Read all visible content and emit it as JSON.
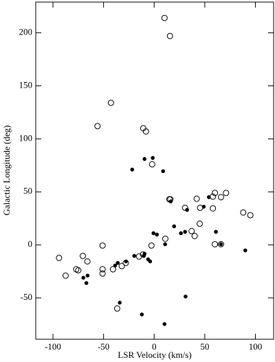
{
  "chart_data": {
    "type": "scatter",
    "xlabel": "LSR Velocity (km/s)",
    "ylabel": "Galactic Longitude (deg)",
    "xlim": [
      -117,
      118
    ],
    "ylim": [
      -89,
      229
    ],
    "xticks": [
      -100,
      -50,
      0,
      50,
      100
    ],
    "yticks": [
      -50,
      0,
      50,
      100,
      150,
      200
    ],
    "series": [
      {
        "marker": "open",
        "color": "#000000",
        "x": [
          10.2,
          15.6,
          -42.7,
          -56,
          -10.8,
          -8.1,
          -2,
          15,
          16,
          42,
          58,
          60,
          66,
          71,
          30.5,
          45.4,
          58,
          88,
          95,
          45,
          37,
          40,
          11,
          -51,
          -2.7,
          60,
          -94,
          -70.5,
          -66,
          -77,
          -75,
          -51,
          -51,
          -87.5,
          -40.7,
          -32,
          -28,
          -15,
          -11,
          -36.6,
          66
        ],
        "y": [
          214,
          197,
          134,
          112,
          110,
          107,
          76,
          43,
          43,
          43.5,
          45.5,
          49,
          45,
          49,
          35,
          35,
          34.4,
          30.5,
          28,
          20,
          13,
          8.4,
          5.8,
          -0.6,
          -0.6,
          0.6,
          -12.3,
          -10.4,
          -15.6,
          -23,
          -24,
          -23,
          -27,
          -29,
          -23,
          -20,
          -17,
          -11,
          -9,
          -60,
          0.6
        ]
      },
      {
        "marker": "filled",
        "color": "#000000",
        "x": [
          -1.4,
          -9.5,
          -21.7,
          8.8,
          16.3,
          32.5,
          49,
          54,
          19.7,
          -0.7,
          2.7,
          26.4,
          30.5,
          61,
          10.8,
          66,
          90,
          -10.2,
          -19.7,
          -9.5,
          -6,
          -4,
          -27.8,
          -36,
          -38.6,
          -65.8,
          -70,
          -67,
          -34,
          -12.2,
          10.2,
          31
        ],
        "y": [
          82,
          81,
          71,
          69.5,
          41,
          33,
          36,
          45,
          17.5,
          11,
          9.7,
          11,
          12.3,
          12.3,
          0.6,
          0.6,
          -5.2,
          -10.4,
          -10.4,
          -8.4,
          -13.6,
          -15.6,
          -15.6,
          -17,
          -19.5,
          -29,
          -31,
          -36,
          -54.5,
          -65.6,
          -74.7,
          -48.7
        ]
      }
    ]
  }
}
